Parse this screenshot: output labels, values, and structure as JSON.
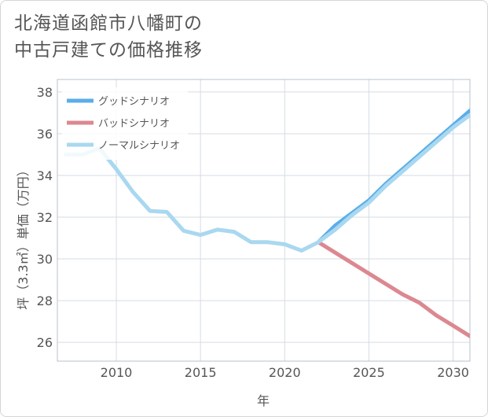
{
  "title": {
    "line1": "北海道函館市八幡町の",
    "line2": "中古戸建ての価格推移"
  },
  "chart_data": {
    "type": "line",
    "xlabel": "年",
    "ylabel": "坪（3.3㎡）単価（万円）",
    "xlim": [
      2006.5,
      2031
    ],
    "ylim": [
      25.1,
      38.6
    ],
    "x_ticks": [
      2010,
      2015,
      2020,
      2025,
      2030
    ],
    "y_ticks": [
      26,
      28,
      30,
      32,
      34,
      36,
      38
    ],
    "grid": true,
    "legend_position": "top-left",
    "series": [
      {
        "name": "グッドシナリオ",
        "color": "#5aaee8",
        "x": [
          2022,
          2023,
          2024,
          2025,
          2026,
          2027,
          2028,
          2029,
          2030,
          2031
        ],
        "y": [
          30.8,
          31.6,
          32.2,
          32.8,
          33.6,
          34.3,
          35.0,
          35.7,
          36.4,
          37.1
        ]
      },
      {
        "name": "バッドシナリオ",
        "color": "#dc8890",
        "x": [
          2022,
          2023,
          2024,
          2025,
          2026,
          2027,
          2028,
          2029,
          2030,
          2031
        ],
        "y": [
          30.8,
          30.3,
          29.8,
          29.3,
          28.8,
          28.3,
          27.9,
          27.3,
          26.8,
          26.3
        ]
      },
      {
        "name": "ノーマルシナリオ",
        "color": "#a9d8f0",
        "x": [
          2007,
          2008,
          2009,
          2010,
          2011,
          2012,
          2013,
          2014,
          2015,
          2016,
          2017,
          2018,
          2019,
          2020,
          2021,
          2022,
          2023,
          2024,
          2025,
          2026,
          2027,
          2028,
          2029,
          2030,
          2031
        ],
        "y": [
          35.0,
          35.0,
          35.3,
          34.3,
          33.2,
          32.3,
          32.25,
          31.35,
          31.15,
          31.4,
          31.3,
          30.8,
          30.8,
          30.7,
          30.4,
          30.8,
          31.4,
          32.1,
          32.7,
          33.5,
          34.2,
          34.9,
          35.6,
          36.3,
          36.9
        ]
      }
    ]
  }
}
